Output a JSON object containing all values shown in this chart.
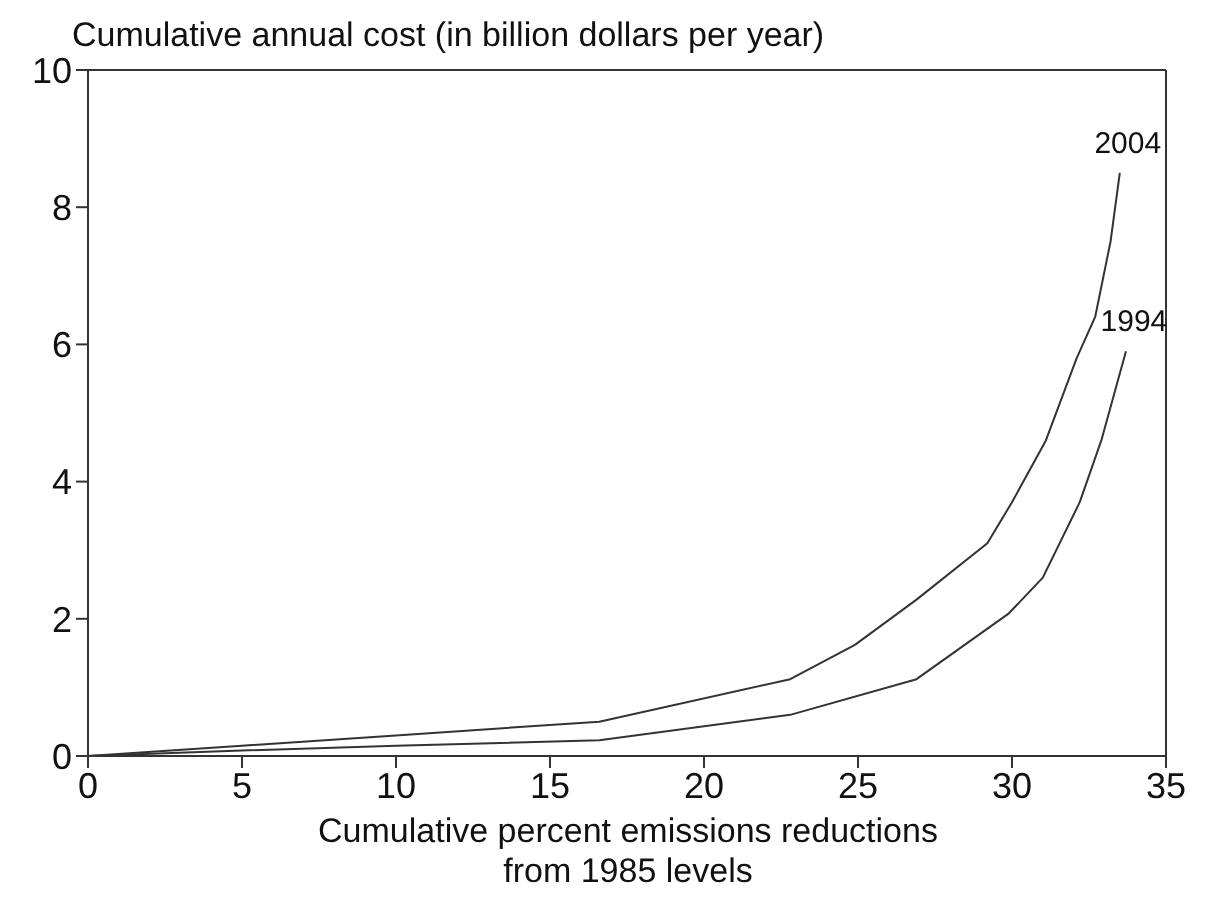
{
  "chart_data": {
    "type": "line",
    "ylabel": "Cumulative annual cost (in billion dollars per year)",
    "xlabel": "Cumulative percent emissions reductions\nfrom 1985 levels",
    "xlim": [
      0,
      35
    ],
    "xticks": [
      0,
      5,
      10,
      15,
      20,
      25,
      30,
      35
    ],
    "ylim": [
      0,
      10
    ],
    "yticks": [
      0,
      2,
      4,
      6,
      8,
      10
    ],
    "marker": "none",
    "line_style": "solid",
    "series": [
      {
        "name": "2004",
        "color": "#333333",
        "x": [
          0,
          5,
          10,
          16.6,
          22.8,
          24.9,
          26.9,
          29.2,
          30,
          31.1,
          32.1,
          32.7,
          33.2,
          33.5
        ],
        "values": [
          0,
          0.15,
          0.3,
          0.5,
          1.12,
          1.62,
          2.28,
          3.1,
          3.7,
          4.6,
          5.8,
          6.4,
          7.5,
          8.5
        ]
      },
      {
        "name": "1994",
        "color": "#333333",
        "x": [
          0,
          5,
          10,
          16.6,
          22.8,
          26.9,
          29.9,
          31,
          32.2,
          32.9,
          33.7
        ],
        "values": [
          0,
          0.08,
          0.15,
          0.23,
          0.6,
          1.12,
          2.08,
          2.6,
          3.7,
          4.6,
          5.9
        ]
      }
    ]
  }
}
